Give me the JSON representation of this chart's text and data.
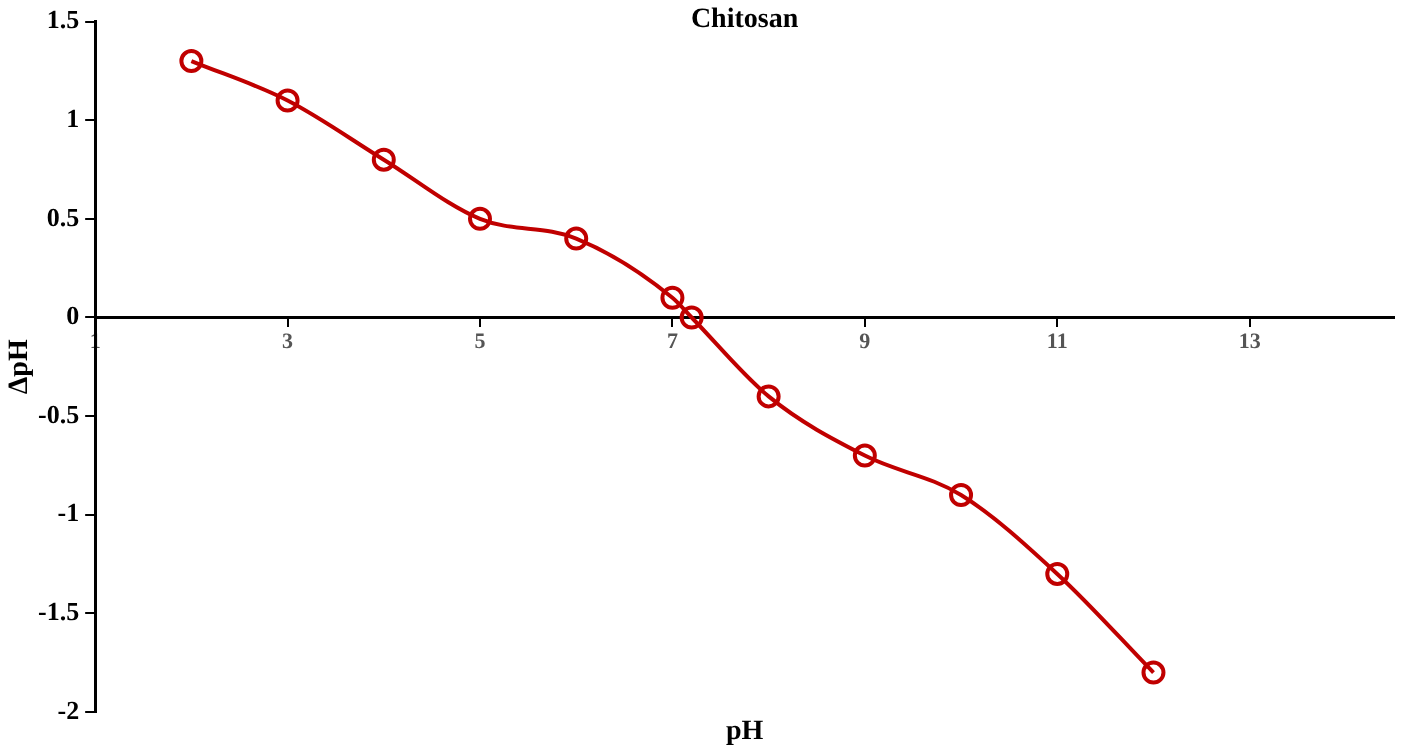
{
  "chart_data": {
    "type": "line",
    "title": "Chitosan",
    "xlabel": "pH",
    "ylabel": "ΔpH",
    "x": [
      2,
      3,
      4,
      5,
      6,
      7,
      7.2,
      8,
      9,
      10,
      11,
      12
    ],
    "series": [
      {
        "color": "#c00000",
        "values": [
          1.3,
          1.1,
          0.8,
          0.5,
          0.4,
          0.1,
          0,
          -0.4,
          -0.7,
          -0.9,
          -1.3,
          -1.8
        ]
      }
    ],
    "xlim": [
      1,
      14.5
    ],
    "xticks": [
      1,
      3,
      5,
      7,
      9,
      11,
      13
    ],
    "ylim": [
      -2,
      1.5
    ],
    "yticks": [
      -2,
      -1.5,
      -1,
      -0.5,
      0,
      0.5,
      1,
      1.5
    ],
    "grid": false,
    "legend": false,
    "marker": "circle",
    "line_style": "solid"
  }
}
